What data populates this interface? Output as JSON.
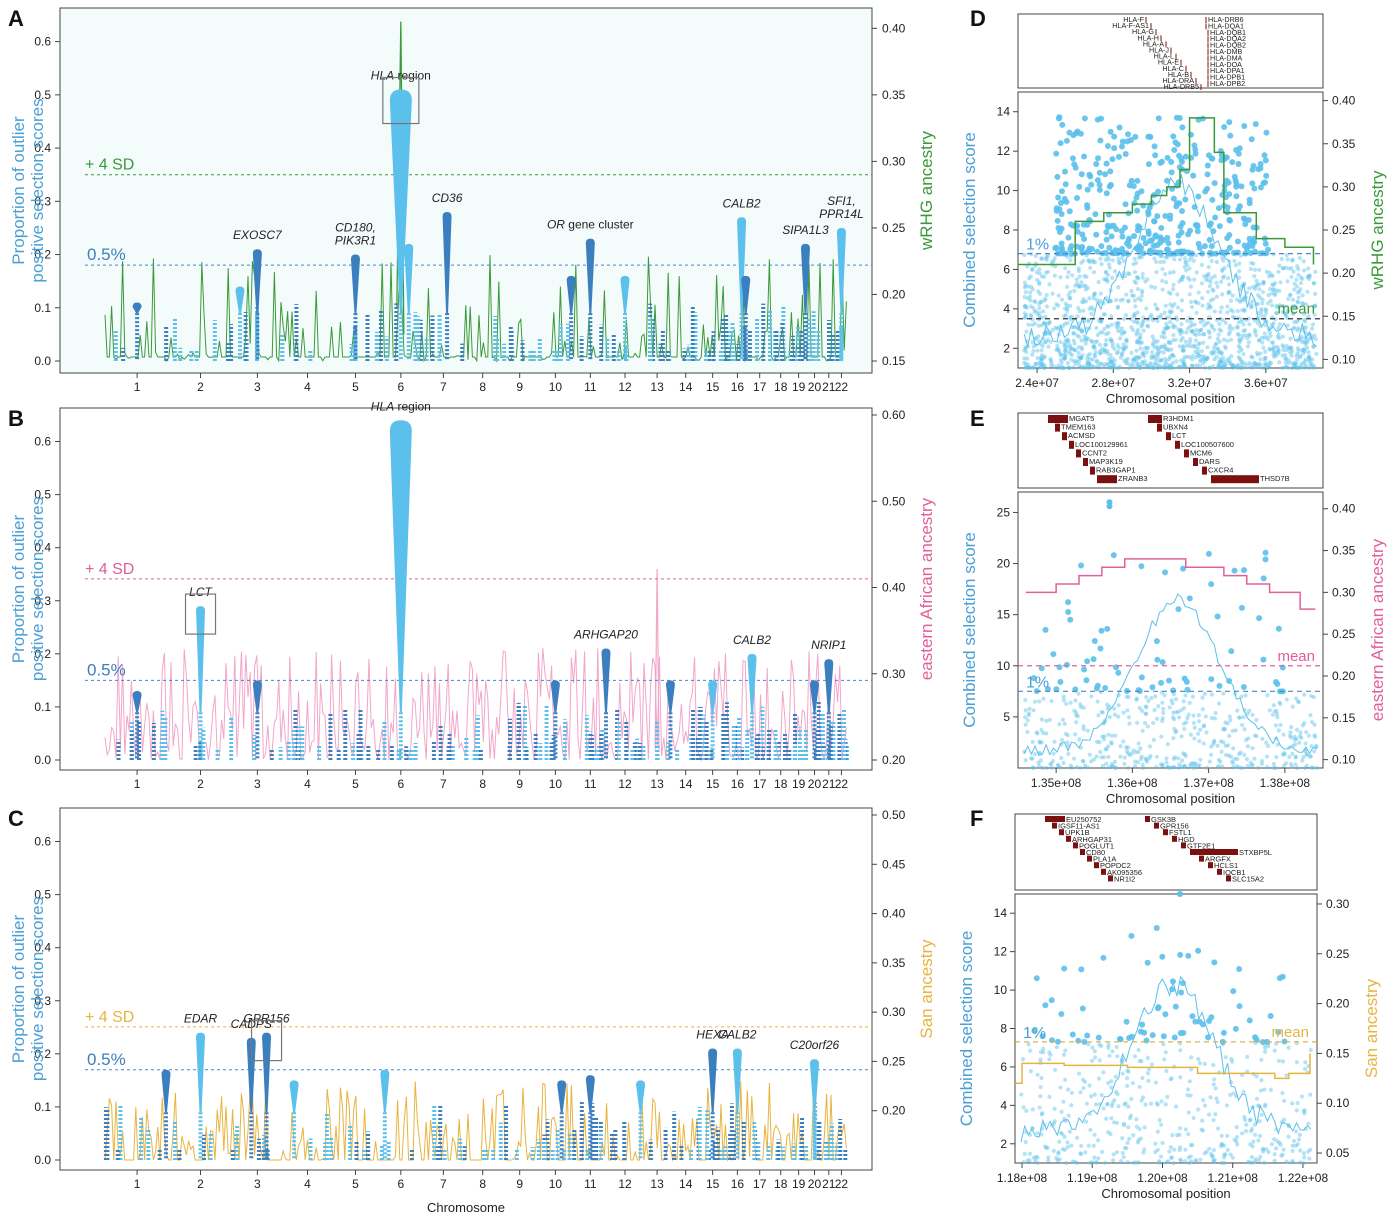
{
  "colors": {
    "blue_light": "#5bc0eb",
    "blue_dark": "#3b7fbf",
    "blue_label": "#4a9fd5",
    "green": "#3a9a3a",
    "pink": "#e0609a",
    "pink_light": "#f2a6c9",
    "gold": "#e8b440",
    "gene_box": "#7a1010",
    "panel_bg": "#f4fbfb",
    "sd_green": "#3a9a3a",
    "sd_pink": "#e0609a",
    "sd_gold": "#e8b440",
    "line_blue": "#4a86c8"
  },
  "panels": {
    "A": {
      "letter": "A"
    },
    "B": {
      "letter": "B"
    },
    "C": {
      "letter": "C"
    },
    "D": {
      "letter": "D"
    },
    "E": {
      "letter": "E"
    },
    "F": {
      "letter": "F"
    }
  },
  "chart_data": [
    {
      "panel": "A",
      "type": "bar",
      "ylabel": "Proportion of outlier positive selection scores",
      "ylabel_lines": [
        "Proportion of outlier",
        "positive selection scores"
      ],
      "y2label": "wRHG ancestry",
      "xlabel": "",
      "ylim": [
        0,
        0.65
      ],
      "y2lim": [
        0.15,
        0.41
      ],
      "yticks": [
        "0.0",
        "0.1",
        "0.2",
        "0.3",
        "0.4",
        "0.5",
        "0.6"
      ],
      "y2ticks": [
        "0.15",
        "0.20",
        "0.25",
        "0.30",
        "0.35",
        "0.40"
      ],
      "y2tick_values": [
        0.15,
        0.2,
        0.25,
        0.3,
        0.35,
        0.4
      ],
      "categories": [
        "1",
        "2",
        "3",
        "4",
        "5",
        "6",
        "7",
        "8",
        "9",
        "10",
        "11",
        "12",
        "13",
        "14",
        "15",
        "16",
        "17",
        "18",
        "19",
        "20",
        "21",
        "22"
      ],
      "ancestry_color": "green",
      "threshold_05": {
        "label": "0.5%",
        "value": 0.18
      },
      "threshold_4sd": {
        "label": "+ 4 SD",
        "y2_value": 0.29
      },
      "peaks": [
        {
          "chrom": 6.0,
          "value": 0.51,
          "label": "HLA region",
          "italic_part": "HLA",
          "boxed": true,
          "color": "blue_light"
        },
        {
          "chrom": 3.0,
          "value": 0.21,
          "label": "EXOSC7",
          "color": "blue_dark"
        },
        {
          "chrom": 5.0,
          "value": 0.2,
          "label": "CD180,\nPIK3R1",
          "color": "blue_dark"
        },
        {
          "chrom": 7.1,
          "value": 0.28,
          "label": "CD36",
          "color": "blue_dark"
        },
        {
          "chrom": 11.0,
          "value": 0.23,
          "label": "OR gene cluster",
          "italic_part": "OR",
          "color": "blue_dark"
        },
        {
          "chrom": 16.2,
          "value": 0.27,
          "label": "CALB2",
          "color": "blue_light"
        },
        {
          "chrom": 19.5,
          "value": 0.22,
          "label": "SIPA1L3",
          "color": "blue_dark"
        },
        {
          "chrom": 22.0,
          "value": 0.25,
          "label": "SFI1,\nPPR14L",
          "color": "blue_light"
        },
        {
          "chrom": 10.5,
          "value": 0.16,
          "color": "blue_dark"
        },
        {
          "chrom": 12.0,
          "value": 0.16,
          "color": "blue_light"
        },
        {
          "chrom": 2.7,
          "value": 0.14,
          "color": "blue_light"
        },
        {
          "chrom": 16.4,
          "value": 0.16,
          "color": "blue_dark"
        },
        {
          "chrom": 6.2,
          "value": 0.22,
          "color": "blue_light"
        },
        {
          "chrom": 1.0,
          "value": 0.11,
          "color": "blue_dark"
        }
      ]
    },
    {
      "panel": "B",
      "type": "bar",
      "ylabel": "Proportion of outlier positive selection scores",
      "ylabel_lines": [
        "Proportion of outlier",
        "positive selection scores"
      ],
      "y2label": "eastern African ancestry",
      "xlabel": "",
      "ylim": [
        0,
        0.65
      ],
      "y2lim": [
        0.2,
        0.6
      ],
      "yticks": [
        "0.0",
        "0.1",
        "0.2",
        "0.3",
        "0.4",
        "0.5",
        "0.6"
      ],
      "y2ticks": [
        "0.20",
        "0.30",
        "0.40",
        "0.50",
        "0.60"
      ],
      "y2tick_values": [
        0.2,
        0.3,
        0.4,
        0.5,
        0.6
      ],
      "categories": [
        "1",
        "2",
        "3",
        "4",
        "5",
        "6",
        "7",
        "8",
        "9",
        "10",
        "11",
        "12",
        "13",
        "14",
        "15",
        "16",
        "17",
        "18",
        "19",
        "20",
        "21",
        "22"
      ],
      "ancestry_color": "pink",
      "threshold_05": {
        "label": "0.5%",
        "value": 0.15
      },
      "threshold_4sd": {
        "label": "+ 4 SD",
        "y2_value": 0.41
      },
      "peaks": [
        {
          "chrom": 6.0,
          "value": 0.64,
          "label": "HLA region",
          "italic_part": "HLA",
          "color": "blue_light"
        },
        {
          "chrom": 2.0,
          "value": 0.29,
          "label": "LCT",
          "boxed": true,
          "color": "blue_light"
        },
        {
          "chrom": 11.5,
          "value": 0.21,
          "label": "ARHGAP20",
          "color": "blue_dark"
        },
        {
          "chrom": 16.7,
          "value": 0.2,
          "label": "CALB2",
          "color": "blue_light"
        },
        {
          "chrom": 21.0,
          "value": 0.19,
          "label": "NRIP1",
          "color": "blue_dark"
        },
        {
          "chrom": 3.0,
          "value": 0.15,
          "color": "blue_dark"
        },
        {
          "chrom": 1.0,
          "value": 0.13,
          "color": "blue_dark"
        },
        {
          "chrom": 10.0,
          "value": 0.15,
          "color": "blue_dark"
        },
        {
          "chrom": 13.5,
          "value": 0.15,
          "color": "blue_dark"
        },
        {
          "chrom": 15.0,
          "value": 0.15,
          "color": "blue_light"
        },
        {
          "chrom": 20.0,
          "value": 0.15,
          "color": "blue_dark"
        }
      ]
    },
    {
      "panel": "C",
      "type": "bar",
      "ylabel": "Proportion of outlier positive selection scores",
      "ylabel_lines": [
        "Proportion of outlier",
        "positive selection scores"
      ],
      "y2label": "San ancestry",
      "xlabel": "Chromosome",
      "ylim": [
        0,
        0.65
      ],
      "y2lim": [
        0.15,
        0.5
      ],
      "yticks": [
        "0.0",
        "0.1",
        "0.2",
        "0.3",
        "0.4",
        "0.5",
        "0.6"
      ],
      "y2ticks": [
        "0.20",
        "0.25",
        "0.30",
        "0.35",
        "0.40",
        "0.45",
        "0.50"
      ],
      "y2tick_values": [
        0.2,
        0.25,
        0.3,
        0.35,
        0.4,
        0.45,
        0.5
      ],
      "categories": [
        "1",
        "2",
        "3",
        "4",
        "5",
        "6",
        "7",
        "8",
        "9",
        "10",
        "11",
        "12",
        "13",
        "14",
        "15",
        "16",
        "17",
        "18",
        "19",
        "20",
        "21",
        "22"
      ],
      "ancestry_color": "gold",
      "threshold_05": {
        "label": "0.5%",
        "value": 0.17
      },
      "threshold_4sd": {
        "label": "+ 4 SD",
        "y2_value": 0.285
      },
      "peaks": [
        {
          "chrom": 2.0,
          "value": 0.24,
          "label": "EDAR",
          "color": "blue_light"
        },
        {
          "chrom": 2.9,
          "value": 0.23,
          "label": "CADPS",
          "color": "blue_dark"
        },
        {
          "chrom": 3.2,
          "value": 0.24,
          "label": "GPR156",
          "boxed": true,
          "color": "blue_dark"
        },
        {
          "chrom": 15.0,
          "value": 0.21,
          "label": "HEXA",
          "color": "blue_dark"
        },
        {
          "chrom": 16.0,
          "value": 0.21,
          "label": "CALB2",
          "color": "blue_light"
        },
        {
          "chrom": 20.0,
          "value": 0.19,
          "label": "C20orf26",
          "color": "blue_light"
        },
        {
          "chrom": 1.5,
          "value": 0.17,
          "color": "blue_dark"
        },
        {
          "chrom": 3.8,
          "value": 0.15,
          "color": "blue_light"
        },
        {
          "chrom": 5.7,
          "value": 0.17,
          "color": "blue_light"
        },
        {
          "chrom": 11.0,
          "value": 0.16,
          "color": "blue_dark"
        },
        {
          "chrom": 12.5,
          "value": 0.15,
          "color": "blue_light"
        },
        {
          "chrom": 10.2,
          "value": 0.15,
          "color": "blue_dark"
        }
      ]
    },
    {
      "panel": "D",
      "type": "scatter",
      "xlabel": "Chromosomal position",
      "ylabel": "Combined selection score",
      "y2label": "wRHG ancestry",
      "xlim": [
        23000000,
        39000000
      ],
      "ylim": [
        1,
        15
      ],
      "y2lim": [
        0.09,
        0.41
      ],
      "xticks": [
        "2.4e+07",
        "2.8e+07",
        "3.2e+07",
        "3.6e+07"
      ],
      "xtick_values": [
        24000000,
        28000000,
        32000000,
        36000000
      ],
      "yticks": [
        "2",
        "4",
        "6",
        "8",
        "10",
        "12",
        "14"
      ],
      "y2ticks": [
        "0.10",
        "0.15",
        "0.20",
        "0.25",
        "0.30",
        "0.35",
        "0.40"
      ],
      "y2tick_values": [
        0.1,
        0.15,
        0.2,
        0.25,
        0.3,
        0.35,
        0.4
      ],
      "ancestry_color": "green",
      "threshold_1pct": {
        "label": "1%",
        "value": 6.8
      },
      "mean_line": {
        "label": "mean",
        "value": 3.5,
        "color": "blue_dark"
      },
      "ancestry_step": [
        [
          23000000,
          0.21
        ],
        [
          25500000,
          0.21
        ],
        [
          26000000,
          0.26
        ],
        [
          27500000,
          0.27
        ],
        [
          29000000,
          0.28
        ],
        [
          30000000,
          0.29
        ],
        [
          30800000,
          0.3
        ],
        [
          31500000,
          0.32
        ],
        [
          32000000,
          0.38
        ],
        [
          33300000,
          0.34
        ],
        [
          33800000,
          0.27
        ],
        [
          35500000,
          0.24
        ],
        [
          37000000,
          0.23
        ],
        [
          38500000,
          0.21
        ]
      ],
      "gene_track": {
        "left": [
          "HLA-F",
          "HLA-F-AS1",
          "HLA-G",
          "HLA-H",
          "HLA-A",
          "HLA-J",
          "HLA-L",
          "HLA-E",
          "HLA-C",
          "HLA-B",
          "HLA-DRA",
          "HLA-DRB5"
        ],
        "right": [
          "HLA-DRB6",
          "HLA-DQA1",
          "HLA-DQB1",
          "HLA-DQA2",
          "HLA-DQB2",
          "HLA-DMB",
          "HLA-DMA",
          "HLA-DOA",
          "HLA-DPA1",
          "HLA-DPB1",
          "HLA-DPB2"
        ]
      }
    },
    {
      "panel": "E",
      "type": "scatter",
      "xlabel": "Chromosomal position",
      "ylabel": "Combined selection score",
      "y2label": "eastern African ancestry",
      "xlim": [
        134500000,
        138500000
      ],
      "ylim": [
        0,
        27
      ],
      "y2lim": [
        0.09,
        0.42
      ],
      "xticks": [
        "1.35e+08",
        "1.36e+08",
        "1.37e+08",
        "1.38e+08"
      ],
      "xtick_values": [
        135000000,
        136000000,
        137000000,
        138000000
      ],
      "yticks": [
        "5",
        "10",
        "15",
        "20",
        "25"
      ],
      "y2ticks": [
        "0.10",
        "0.15",
        "0.20",
        "0.25",
        "0.30",
        "0.35",
        "0.40"
      ],
      "y2tick_values": [
        0.1,
        0.15,
        0.2,
        0.25,
        0.3,
        0.35,
        0.4
      ],
      "ancestry_color": "pink",
      "threshold_1pct": {
        "label": "1%",
        "value": 7.5
      },
      "mean_line": {
        "label": "mean",
        "value": 10.0,
        "color": "pink"
      },
      "ancestry_step": [
        [
          134600000,
          0.3
        ],
        [
          135000000,
          0.31
        ],
        [
          135300000,
          0.32
        ],
        [
          135600000,
          0.33
        ],
        [
          135900000,
          0.34
        ],
        [
          136500000,
          0.34
        ],
        [
          136700000,
          0.33
        ],
        [
          137200000,
          0.32
        ],
        [
          137500000,
          0.31
        ],
        [
          137800000,
          0.3
        ],
        [
          138200000,
          0.28
        ],
        [
          138400000,
          0.28
        ]
      ],
      "gene_track": {
        "genes": [
          "MGAT5",
          "TMEM163",
          "ACMSD",
          "LOC100129961",
          "CCNT2",
          "MAP3K19",
          "RAB3GAP1",
          "ZRANB3",
          "R3HDM1",
          "UBXN4",
          "LCT",
          "LOC100507600",
          "MCM6",
          "DARS",
          "CXCR4",
          "THSD7B"
        ]
      }
    },
    {
      "panel": "F",
      "type": "scatter",
      "xlabel": "Chromosomal position",
      "ylabel": "Combined selection score",
      "y2label": "San ancestry",
      "xlim": [
        117900000,
        122200000
      ],
      "ylim": [
        1,
        15
      ],
      "y2lim": [
        0.04,
        0.31
      ],
      "xticks": [
        "1.18e+08",
        "1.19e+08",
        "1.20e+08",
        "1.21e+08",
        "1.22e+08"
      ],
      "xtick_values": [
        118000000,
        119000000,
        120000000,
        121000000,
        122000000
      ],
      "yticks": [
        "2",
        "4",
        "6",
        "8",
        "10",
        "12",
        "14"
      ],
      "y2ticks": [
        "0.05",
        "0.10",
        "0.15",
        "0.20",
        "0.25",
        "0.30"
      ],
      "y2tick_values": [
        0.05,
        0.1,
        0.15,
        0.2,
        0.25,
        0.3
      ],
      "ancestry_color": "gold",
      "threshold_1pct": {
        "label": "1%",
        "value": 7.3
      },
      "mean_line": {
        "label": "mean",
        "value": 7.3,
        "color": "gold"
      },
      "ancestry_step": [
        [
          117900000,
          0.12
        ],
        [
          118000000,
          0.14
        ],
        [
          118600000,
          0.138
        ],
        [
          119500000,
          0.136
        ],
        [
          120200000,
          0.136
        ],
        [
          120500000,
          0.13
        ],
        [
          121200000,
          0.13
        ],
        [
          121600000,
          0.125
        ],
        [
          121800000,
          0.13
        ],
        [
          122100000,
          0.15
        ]
      ],
      "gene_track": {
        "genes": [
          "EU250752",
          "IGSF11-AS1",
          "UPK1B",
          "ARHGAP31",
          "POGLUT1",
          "CD80",
          "PLA1A",
          "POPDC2",
          "AK095356",
          "NR1I2",
          "GSK3B",
          "GPR156",
          "FSTL1",
          "HGD",
          "GTF2E1",
          "STXBP5L",
          "ARGFX",
          "HCLS1",
          "IQCB1",
          "SLC15A2"
        ]
      }
    }
  ]
}
